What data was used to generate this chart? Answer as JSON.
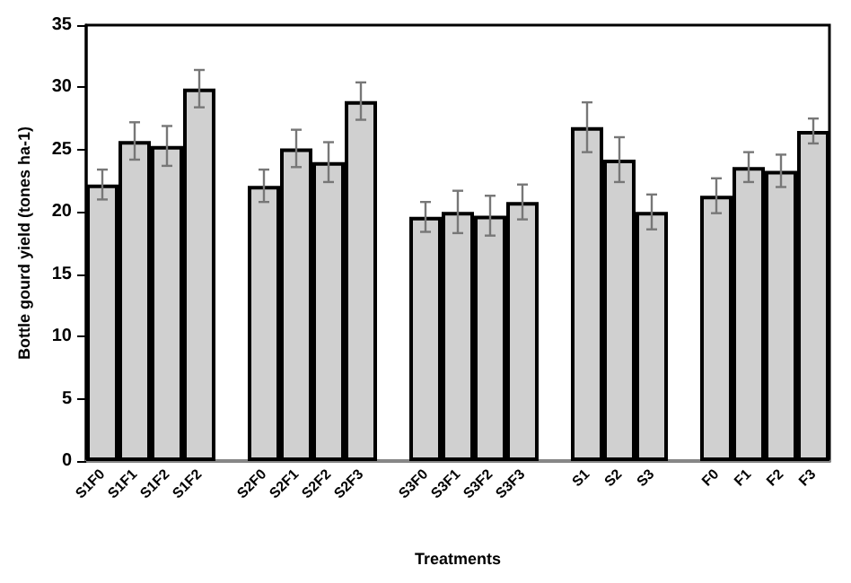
{
  "chart_data": {
    "type": "bar",
    "xlabel": "Treatments",
    "ylabel": "Bottle gourd yield (tones ha-1)",
    "categories": [
      "S1F0",
      "S1F1",
      "S1F2",
      "S1F2",
      null,
      "S2F0",
      "S2F1",
      "S2F2",
      "S2F3",
      null,
      "S3F0",
      "S3F1",
      "S3F2",
      "S3F3",
      null,
      "S1",
      "S2",
      "S3",
      null,
      "F0",
      "F1",
      "F2",
      "F3"
    ],
    "values": [
      22.2,
      25.7,
      25.3,
      29.9,
      null,
      22.1,
      25.1,
      24.0,
      28.9,
      null,
      19.6,
      20.0,
      19.7,
      20.8,
      null,
      26.8,
      24.2,
      20.0,
      null,
      21.3,
      23.6,
      23.3,
      26.5
    ],
    "errors": [
      1.2,
      1.5,
      1.6,
      1.5,
      null,
      1.3,
      1.5,
      1.6,
      1.5,
      null,
      1.2,
      1.7,
      1.6,
      1.4,
      null,
      2.0,
      1.8,
      1.4,
      null,
      1.4,
      1.2,
      1.3,
      1.0
    ],
    "color": "#d0d0d0",
    "ylim": [
      0,
      35
    ],
    "yticks": [
      0,
      5,
      10,
      15,
      20,
      25,
      30,
      35
    ],
    "grid": false
  }
}
